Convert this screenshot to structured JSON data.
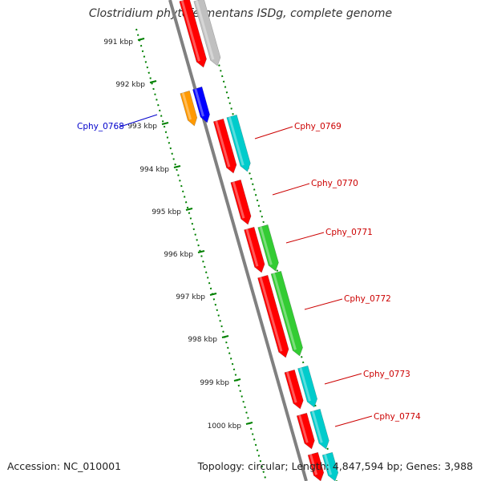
{
  "title": "Clostridium phytofermentans ISDg, complete genome",
  "footer": {
    "accession": "Accession: NC_010001",
    "topology": "Topology: circular; Length: 4,847,594 bp; Genes: 3,988"
  },
  "colors": {
    "backbone": "#808080",
    "ruler": "#008000",
    "highlight_label": "#0000cc",
    "gene_label": "#cc0000",
    "red": "#ff0000",
    "cyan": "#00cccc",
    "green": "#33cc33",
    "gray": "#c0c0c0",
    "orange": "#ff9900",
    "blue": "#0000ff"
  },
  "ruler_ticks": [
    "991 kbp",
    "992 kbp",
    "993 kbp",
    "994 kbp",
    "995 kbp",
    "996 kbp",
    "997 kbp",
    "998 kbp",
    "999 kbp",
    "1000 kbp"
  ],
  "gene_labels": [
    {
      "text": "Cphy_0768",
      "color": "#0000cc"
    },
    {
      "text": "Cphy_0769",
      "color": "#cc0000"
    },
    {
      "text": "Cphy_0770",
      "color": "#cc0000"
    },
    {
      "text": "Cphy_0771",
      "color": "#cc0000"
    },
    {
      "text": "Cphy_0772",
      "color": "#cc0000"
    },
    {
      "text": "Cphy_0773",
      "color": "#cc0000"
    },
    {
      "text": "Cphy_0774",
      "color": "#cc0000"
    }
  ]
}
